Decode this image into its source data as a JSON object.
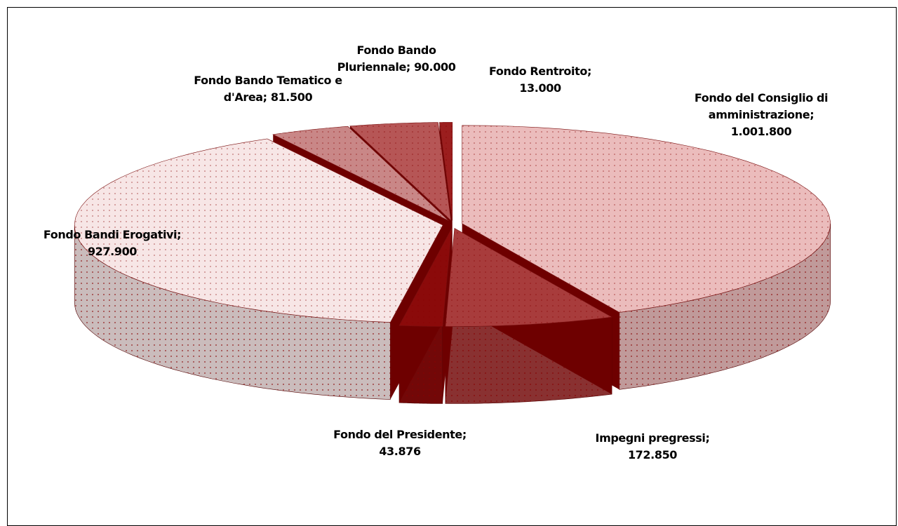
{
  "chart_data": {
    "type": "pie",
    "categories": [
      "Fondo del Consiglio di amministrazione",
      "Impegni pregressi",
      "Fondo del Presidente",
      "Fondo Bandi Erogativi",
      "Fondo Bando Tematico e d'Area",
      "Fondo Bando Pluriennale",
      "Fondo Rentroito"
    ],
    "values": [
      1001800,
      172850,
      43876,
      927900,
      81500,
      90000,
      13000
    ],
    "value_labels": [
      "1.001.800",
      "172.850",
      "43.876",
      "927.900",
      "81.500",
      "90.000",
      "13.000"
    ],
    "separator": ";",
    "colors": [
      "#ebbcbc",
      "#a83c3c",
      "#8b0a0a",
      "#f7e6e6",
      "#c98787",
      "#b65656",
      "#9b1e1e"
    ]
  }
}
